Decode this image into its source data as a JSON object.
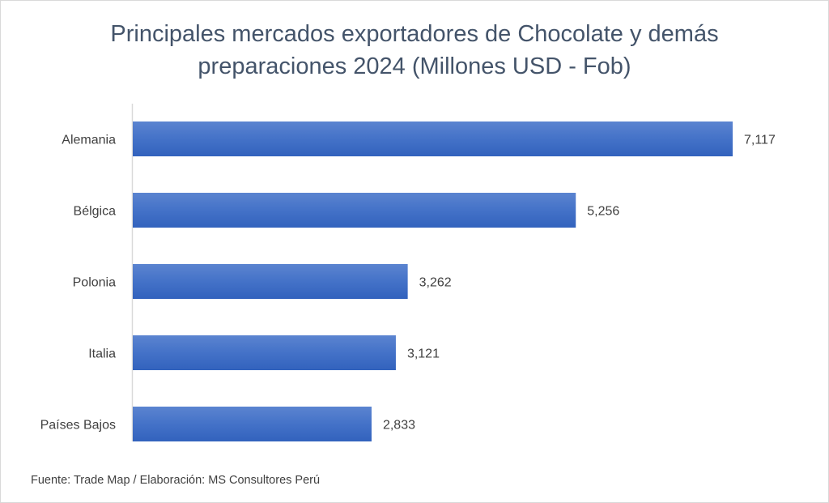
{
  "chart_data": {
    "type": "bar",
    "orientation": "horizontal",
    "title": "Principales mercados exportadores de Chocolate y demás preparaciones 2024 (Millones USD - Fob)",
    "categories": [
      "Alemania",
      "Bélgica",
      "Polonia",
      "Italia",
      "Países Bajos"
    ],
    "values": [
      7117,
      5256,
      3262,
      3121,
      2833
    ],
    "data_labels": [
      "7,117",
      "5,256",
      "3,262",
      "3,121",
      "2,833"
    ],
    "xlim": [
      0,
      8000
    ],
    "grid": false,
    "legend": "none",
    "bar_color": "#4472c4"
  },
  "footer": {
    "source": "Fuente: Trade Map / Elaboración: MS Consultores Perú"
  }
}
